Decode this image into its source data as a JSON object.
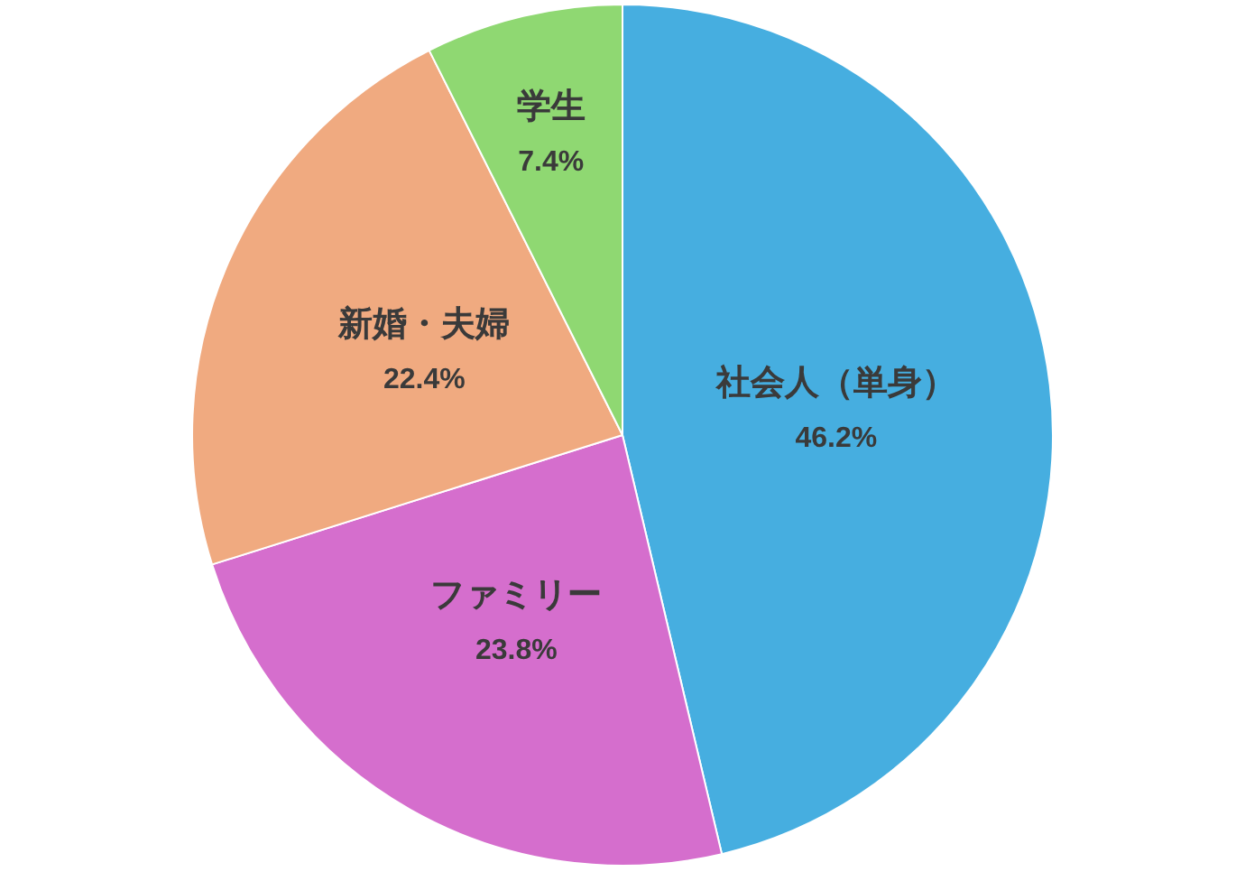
{
  "chart_data": {
    "type": "pie",
    "categories": [
      "社会人（単身）",
      "ファミリー",
      "新婚・夫婦",
      "学生"
    ],
    "values": [
      46.2,
      23.8,
      22.4,
      7.4
    ],
    "colors": [
      "#46aee0",
      "#d56ecd",
      "#f0aa80",
      "#8fd872"
    ],
    "value_labels": [
      "46.2%",
      "23.8%",
      "22.4%",
      "7.4%"
    ],
    "legend": false
  }
}
